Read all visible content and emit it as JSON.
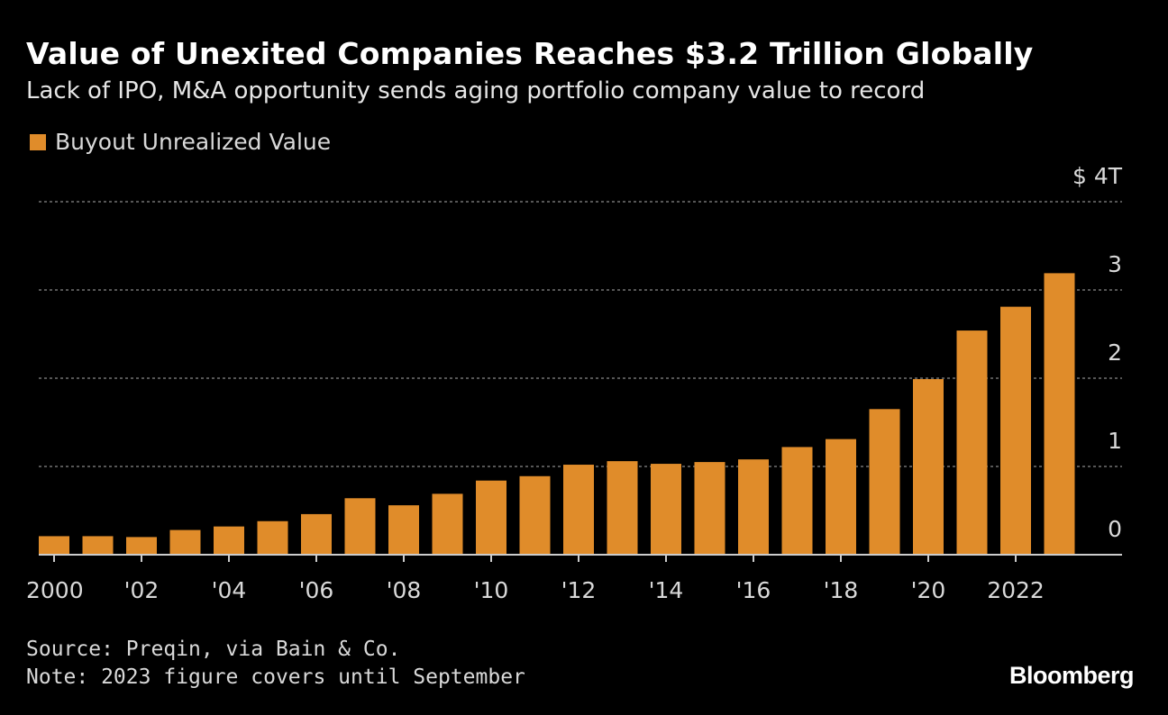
{
  "header": {
    "title": "Value of Unexited Companies Reaches $3.2 Trillion Globally",
    "subtitle": "Lack of IPO, M&A opportunity sends aging portfolio company value to record"
  },
  "legend": {
    "label": "Buyout Unrealized Value"
  },
  "colors": {
    "bar": "#E08C2A",
    "background": "#000000",
    "grid": "#8a8a8a"
  },
  "chart_data": {
    "type": "bar",
    "categories": [
      "2000",
      "2001",
      "2002",
      "2003",
      "2004",
      "2005",
      "2006",
      "2007",
      "2008",
      "2009",
      "2010",
      "2011",
      "2012",
      "2013",
      "2014",
      "2015",
      "2016",
      "2017",
      "2018",
      "2019",
      "2020",
      "2021",
      "2022",
      "2023"
    ],
    "x_tick_labels": [
      "2000",
      "",
      "'02",
      "",
      "'04",
      "",
      "'06",
      "",
      "'08",
      "",
      "'10",
      "",
      "'12",
      "",
      "'14",
      "",
      "'16",
      "",
      "'18",
      "",
      "'20",
      "",
      "2022",
      ""
    ],
    "series": [
      {
        "name": "Buyout Unrealized Value",
        "values": [
          0.21,
          0.21,
          0.2,
          0.28,
          0.32,
          0.38,
          0.46,
          0.64,
          0.56,
          0.69,
          0.84,
          0.89,
          1.02,
          1.06,
          1.03,
          1.05,
          1.08,
          1.22,
          1.31,
          1.65,
          1.99,
          2.54,
          2.81,
          3.19
        ]
      }
    ],
    "y_ticks": [
      "0",
      "1",
      "2",
      "3",
      "$ 4T"
    ],
    "y_tick_values": [
      0,
      1,
      2,
      3,
      4
    ],
    "ylim": [
      0,
      4
    ],
    "grid": true,
    "legend_position": "top-left"
  },
  "footer": {
    "source": "Source: Preqin, via Bain & Co.",
    "note": "Note: 2023 figure covers until September",
    "brand": "Bloomberg"
  }
}
